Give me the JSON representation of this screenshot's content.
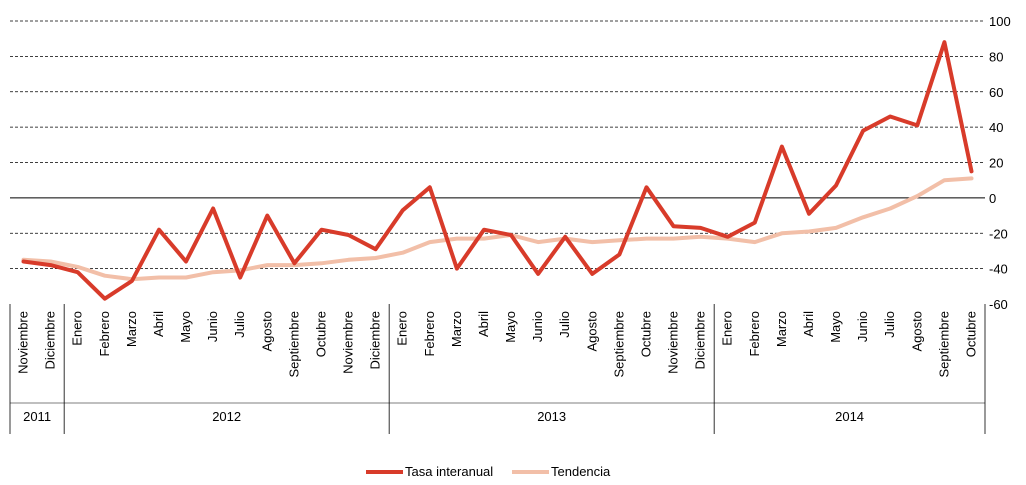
{
  "chart_data": {
    "type": "line",
    "title": "",
    "xlabel": "",
    "ylabel": "",
    "ylim": [
      -60,
      100
    ],
    "yticks": [
      "100",
      "80",
      "60",
      "40",
      "20",
      "0",
      "-20",
      "-40",
      "-60"
    ],
    "ytick_values": [
      100,
      80,
      60,
      40,
      20,
      0,
      -20,
      -40,
      -60
    ],
    "grid": "horizontal dashed",
    "zero_line": "solid",
    "legend_position": "bottom-center",
    "categories": [
      "Noviembre",
      "Diciembre",
      "Enero",
      "Febrero",
      "Marzo",
      "Abril",
      "Mayo",
      "Junio",
      "Julio",
      "Agosto",
      "Septiembre",
      "Octubre",
      "Noviembre",
      "Diciembre",
      "Enero",
      "Febrero",
      "Marzo",
      "Abril",
      "Mayo",
      "Junio",
      "Julio",
      "Agosto",
      "Septiembre",
      "Octubre",
      "Noviembre",
      "Diciembre",
      "Enero",
      "Febrero",
      "Marzo",
      "Abril",
      "Mayo",
      "Junio",
      "Julio",
      "Agosto",
      "Septiembre",
      "Octubre"
    ],
    "year_groups": [
      {
        "label": "2011",
        "count": 2
      },
      {
        "label": "2012",
        "count": 12
      },
      {
        "label": "2013",
        "count": 12
      },
      {
        "label": "2014",
        "count": 10
      }
    ],
    "series": [
      {
        "name": "Tasa interanual",
        "color": "#d83b2a",
        "values": [
          -36,
          -38,
          -42,
          -57,
          -47,
          -18,
          -36,
          -6,
          -45,
          -10,
          -37,
          -18,
          -21,
          -29,
          -7,
          6,
          -40,
          -18,
          -21,
          -43,
          -22,
          -43,
          -32,
          6,
          -16,
          -17,
          -22,
          -14,
          29,
          -9,
          7,
          38,
          46,
          41,
          88,
          15
        ]
      },
      {
        "name": "Tendencia",
        "color": "#f2bfa8",
        "values": [
          -35,
          -36,
          -39,
          -44,
          -46,
          -45,
          -45,
          -42,
          -41,
          -38,
          -38,
          -37,
          -35,
          -34,
          -31,
          -25,
          -23,
          -23,
          -21,
          -25,
          -23,
          -25,
          -24,
          -23,
          -23,
          -22,
          -23,
          -25,
          -20,
          -19,
          -17,
          -11,
          -6,
          1,
          10,
          11
        ]
      }
    ]
  }
}
